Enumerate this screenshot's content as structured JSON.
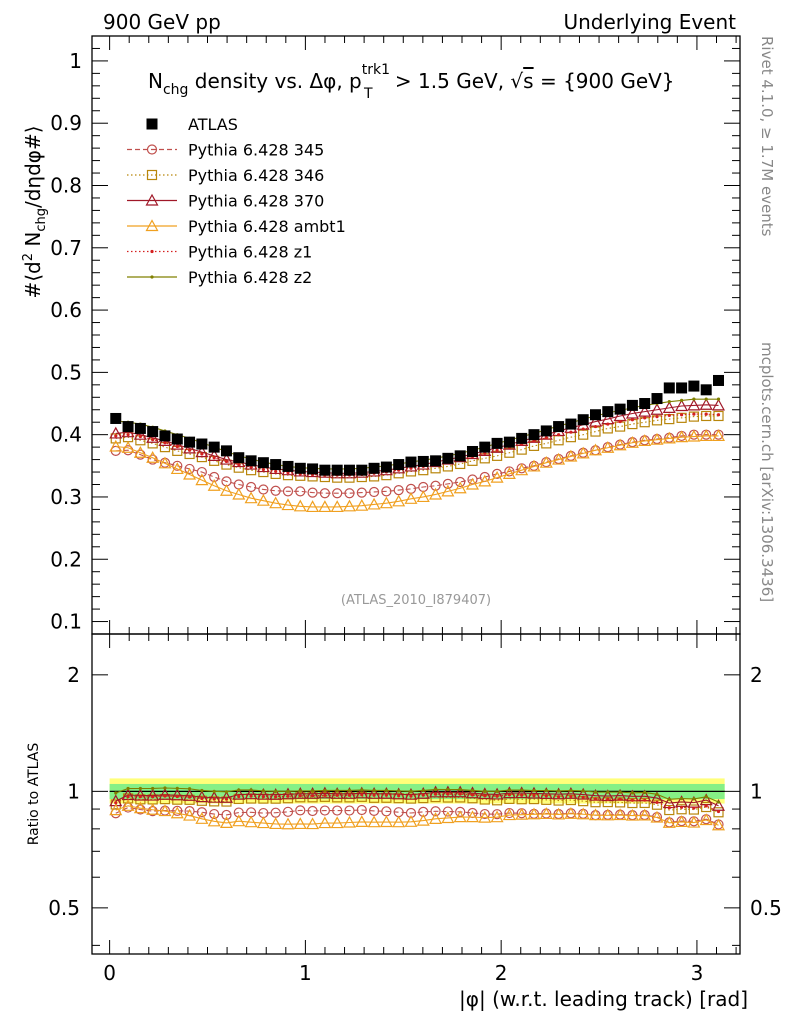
{
  "header": {
    "left": "900 GeV pp",
    "right": "Underlying Event"
  },
  "side_labels": {
    "rivet": "Rivet 4.1.0, ≥ 1.7M events",
    "mcplots": "mcplots.cern.ch [arXiv:1306.3436]"
  },
  "chart_data": {
    "type": "scatter",
    "title": "N_chg density vs. Δφ, p_T^trk1 > 1.5 GeV, √s = {900 GeV}",
    "title_parts": {
      "n": "N",
      "chg": "chg",
      "mid": " density vs. Δφ, p",
      "trk1": "trk1",
      "T": "T",
      "gt": " > 1.5 GeV, ",
      "sqrt": "√",
      "s": "s",
      "tail": " = {900 GeV}"
    },
    "ylabel": "#⟨d² N_chg/dηdφ#⟩",
    "ylabel_parts": {
      "a": "#⟨d",
      "sup2": "2",
      "b": " N",
      "chg": "chg",
      "c": "/dηdφ#⟩"
    },
    "ratio_ylabel": "Ratio to ATLAS",
    "xlabel": "|φ| (w.r.t. leading track) [rad]",
    "analysis_id": "(ATLAS_2010_I879407)",
    "xlim": [
      -0.09,
      3.22
    ],
    "ylim": [
      0.08,
      1.04
    ],
    "ratio_ylim": [
      0.38,
      2.55
    ],
    "x_ticks": [
      "0",
      "1",
      "2",
      "3"
    ],
    "x_tick_values": [
      0,
      1,
      2,
      3
    ],
    "y_ticks": [
      "0.1",
      "0.2",
      "0.3",
      "0.4",
      "0.5",
      "0.6",
      "0.7",
      "0.8",
      "0.9",
      "1"
    ],
    "y_tick_values": [
      0.1,
      0.2,
      0.3,
      0.4,
      0.5,
      0.6,
      0.7,
      0.8,
      0.9,
      1.0
    ],
    "ratio_ticks": [
      "0.5",
      "1",
      "2"
    ],
    "ratio_tick_values": [
      0.5,
      1,
      2
    ],
    "ratio_band_inner": [
      0.955,
      1.045
    ],
    "ratio_band_outer": [
      0.93,
      1.08
    ],
    "x": [
      0.0314,
      0.0942,
      0.1571,
      0.2199,
      0.2827,
      0.3456,
      0.4084,
      0.4712,
      0.5341,
      0.5969,
      0.6597,
      0.7226,
      0.7854,
      0.8482,
      0.9111,
      0.9739,
      1.0367,
      1.0996,
      1.1624,
      1.2252,
      1.2881,
      1.3509,
      1.4137,
      1.4765,
      1.5394,
      1.6022,
      1.665,
      1.7279,
      1.7907,
      1.8535,
      1.9164,
      1.9792,
      2.042,
      2.1049,
      2.1677,
      2.2305,
      2.2934,
      2.3562,
      2.419,
      2.4819,
      2.5447,
      2.6075,
      2.6704,
      2.7332,
      2.796,
      2.8588,
      2.9217,
      2.9845,
      3.0473,
      3.1102
    ],
    "series": [
      {
        "name": "ATLAS",
        "legend": "ATLAS",
        "color": "#000000",
        "marker": "square",
        "line": "none",
        "values": [
          0.426,
          0.413,
          0.41,
          0.405,
          0.398,
          0.393,
          0.388,
          0.385,
          0.38,
          0.374,
          0.363,
          0.358,
          0.355,
          0.352,
          0.349,
          0.346,
          0.345,
          0.343,
          0.343,
          0.343,
          0.343,
          0.346,
          0.348,
          0.352,
          0.356,
          0.357,
          0.358,
          0.362,
          0.366,
          0.373,
          0.38,
          0.386,
          0.388,
          0.394,
          0.4,
          0.406,
          0.413,
          0.417,
          0.424,
          0.432,
          0.437,
          0.441,
          0.447,
          0.45,
          0.458,
          0.475,
          0.475,
          0.478,
          0.472,
          0.487
        ]
      },
      {
        "name": "Pythia 6.428 345",
        "legend": "Pythia 6.428 345",
        "color": "#c0504d",
        "marker": "circle",
        "line": "dashed",
        "values": [
          0.374,
          0.375,
          0.368,
          0.36,
          0.355,
          0.35,
          0.345,
          0.34,
          0.332,
          0.325,
          0.32,
          0.316,
          0.312,
          0.31,
          0.309,
          0.309,
          0.307,
          0.306,
          0.306,
          0.306,
          0.307,
          0.308,
          0.309,
          0.311,
          0.313,
          0.316,
          0.318,
          0.321,
          0.324,
          0.328,
          0.332,
          0.337,
          0.341,
          0.346,
          0.35,
          0.356,
          0.361,
          0.366,
          0.371,
          0.375,
          0.38,
          0.384,
          0.388,
          0.391,
          0.393,
          0.395,
          0.398,
          0.4,
          0.4,
          0.4
        ]
      },
      {
        "name": "Pythia 6.428 346",
        "legend": "Pythia 6.428 346",
        "color": "#b8860b",
        "marker": "square-open",
        "line": "dotted",
        "values": [
          0.394,
          0.396,
          0.391,
          0.386,
          0.38,
          0.374,
          0.369,
          0.364,
          0.358,
          0.352,
          0.347,
          0.343,
          0.34,
          0.337,
          0.335,
          0.334,
          0.333,
          0.332,
          0.331,
          0.331,
          0.332,
          0.333,
          0.335,
          0.338,
          0.341,
          0.343,
          0.346,
          0.349,
          0.353,
          0.358,
          0.362,
          0.366,
          0.371,
          0.376,
          0.382,
          0.386,
          0.391,
          0.396,
          0.4,
          0.405,
          0.41,
          0.413,
          0.417,
          0.42,
          0.423,
          0.425,
          0.427,
          0.429,
          0.43,
          0.43
        ]
      },
      {
        "name": "Pythia 6.428 370",
        "legend": "Pythia 6.428 370",
        "color": "#a01828",
        "marker": "triangle-open",
        "line": "solid",
        "values": [
          0.402,
          0.404,
          0.4,
          0.395,
          0.39,
          0.384,
          0.378,
          0.372,
          0.366,
          0.36,
          0.356,
          0.352,
          0.348,
          0.345,
          0.343,
          0.341,
          0.34,
          0.339,
          0.338,
          0.338,
          0.339,
          0.341,
          0.343,
          0.346,
          0.349,
          0.352,
          0.356,
          0.36,
          0.364,
          0.369,
          0.374,
          0.379,
          0.384,
          0.39,
          0.395,
          0.4,
          0.406,
          0.411,
          0.416,
          0.421,
          0.425,
          0.43,
          0.434,
          0.437,
          0.44,
          0.443,
          0.446,
          0.447,
          0.448,
          0.447
        ]
      },
      {
        "name": "Pythia 6.428 ambt1",
        "legend": "Pythia 6.428 ambt1",
        "color": "#f0a020",
        "marker": "triangle-open",
        "line": "solid",
        "values": [
          0.381,
          0.379,
          0.371,
          0.363,
          0.354,
          0.345,
          0.336,
          0.327,
          0.318,
          0.31,
          0.304,
          0.298,
          0.294,
          0.29,
          0.287,
          0.285,
          0.284,
          0.284,
          0.284,
          0.285,
          0.286,
          0.288,
          0.29,
          0.293,
          0.297,
          0.3,
          0.304,
          0.309,
          0.314,
          0.32,
          0.325,
          0.331,
          0.337,
          0.343,
          0.349,
          0.355,
          0.36,
          0.365,
          0.37,
          0.375,
          0.379,
          0.383,
          0.387,
          0.39,
          0.392,
          0.394,
          0.396,
          0.397,
          0.398,
          0.398
        ]
      },
      {
        "name": "Pythia 6.428 z1",
        "legend": "Pythia 6.428 z1",
        "color": "#d42020",
        "marker": "dot",
        "line": "dotted",
        "values": [
          0.398,
          0.4,
          0.397,
          0.392,
          0.387,
          0.381,
          0.375,
          0.369,
          0.363,
          0.357,
          0.352,
          0.348,
          0.344,
          0.341,
          0.339,
          0.337,
          0.336,
          0.335,
          0.335,
          0.335,
          0.336,
          0.338,
          0.34,
          0.343,
          0.346,
          0.349,
          0.352,
          0.356,
          0.36,
          0.365,
          0.37,
          0.375,
          0.38,
          0.385,
          0.39,
          0.395,
          0.4,
          0.404,
          0.409,
          0.413,
          0.417,
          0.421,
          0.424,
          0.427,
          0.429,
          0.431,
          0.432,
          0.433,
          0.433,
          0.432
        ]
      },
      {
        "name": "Pythia 6.428 z2",
        "legend": "Pythia 6.428 z2",
        "color": "#808000",
        "marker": "dot",
        "line": "solid",
        "values": [
          0.422,
          0.42,
          0.417,
          0.412,
          0.406,
          0.4,
          0.394,
          0.387,
          0.38,
          0.373,
          0.366,
          0.361,
          0.356,
          0.352,
          0.349,
          0.347,
          0.346,
          0.345,
          0.345,
          0.345,
          0.346,
          0.348,
          0.35,
          0.353,
          0.356,
          0.359,
          0.362,
          0.366,
          0.37,
          0.375,
          0.38,
          0.386,
          0.391,
          0.397,
          0.402,
          0.408,
          0.414,
          0.419,
          0.425,
          0.43,
          0.435,
          0.439,
          0.443,
          0.447,
          0.45,
          0.453,
          0.455,
          0.457,
          0.457,
          0.457
        ]
      }
    ]
  }
}
